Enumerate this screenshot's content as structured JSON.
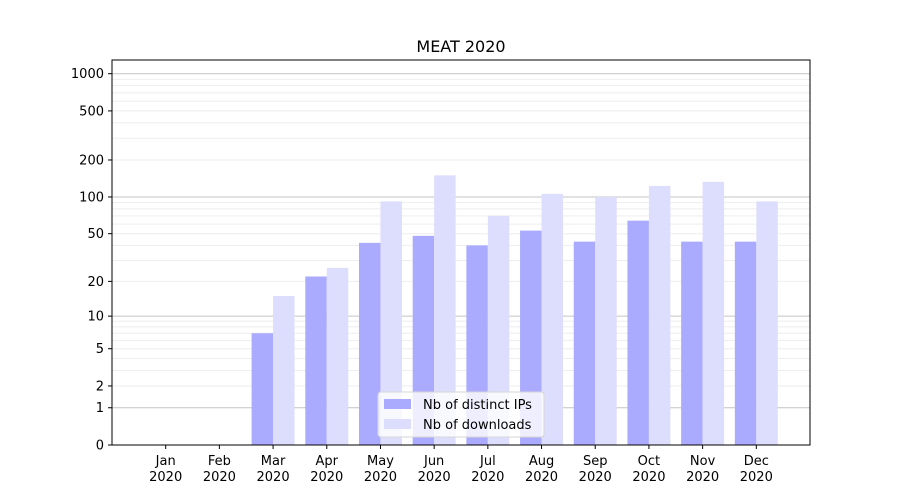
{
  "chart_data": {
    "type": "bar",
    "title": "MEAT 2020",
    "xlabel": "",
    "ylabel": "",
    "yscale": "symlog (log10(1+y))",
    "ylim": [
      0,
      1294
    ],
    "yticks": [
      0,
      1,
      2,
      5,
      10,
      20,
      50,
      100,
      200,
      500,
      1000
    ],
    "grid": true,
    "legend_placement": "lower center",
    "categories": [
      "Jan\n2020",
      "Feb\n2020",
      "Mar\n2020",
      "Apr\n2020",
      "May\n2020",
      "Jun\n2020",
      "Jul\n2020",
      "Aug\n2020",
      "Sep\n2020",
      "Oct\n2020",
      "Nov\n2020",
      "Dec\n2020"
    ],
    "category_lines": [
      [
        "Jan",
        "2020"
      ],
      [
        "Feb",
        "2020"
      ],
      [
        "Mar",
        "2020"
      ],
      [
        "Apr",
        "2020"
      ],
      [
        "May",
        "2020"
      ],
      [
        "Jun",
        "2020"
      ],
      [
        "Jul",
        "2020"
      ],
      [
        "Aug",
        "2020"
      ],
      [
        "Sep",
        "2020"
      ],
      [
        "Oct",
        "2020"
      ],
      [
        "Nov",
        "2020"
      ],
      [
        "Dec",
        "2020"
      ]
    ],
    "series": [
      {
        "name": "Nb of distinct IPs",
        "color": "#aaaaff",
        "values": [
          0,
          0,
          7,
          22,
          42,
          48,
          40,
          53,
          43,
          64,
          43,
          43
        ]
      },
      {
        "name": "Nb of downloads",
        "color": "#ddddfd",
        "values": [
          0,
          0,
          15,
          26,
          92,
          150,
          70,
          106,
          100,
          123,
          133,
          92
        ]
      }
    ]
  }
}
